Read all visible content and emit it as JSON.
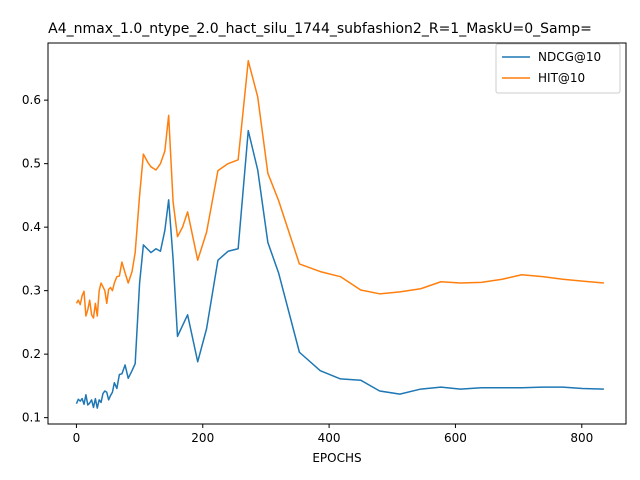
{
  "chart_data": {
    "type": "line",
    "title": "A4_nmax_1.0_ntype_2.0_hact_silu_1744_subfashion2_R=1_MaskU=0_Samp=",
    "xlabel": "EPOCHS",
    "ylabel": "",
    "xlim": [
      -45,
      870
    ],
    "ylim": [
      0.09,
      0.69
    ],
    "xticks": [
      0,
      200,
      400,
      600,
      800
    ],
    "yticks": [
      0.1,
      0.2,
      0.3,
      0.4,
      0.5,
      0.6
    ],
    "legend_position": "top-right",
    "grid": false,
    "series": [
      {
        "name": "NDCG@10",
        "color": "#1f77b4",
        "x": [
          0,
          3,
          6,
          9,
          12,
          15,
          18,
          21,
          24,
          27,
          30,
          33,
          36,
          39,
          42,
          45,
          48,
          51,
          54,
          57,
          60,
          64,
          68,
          72,
          77,
          82,
          88,
          93,
          100,
          106,
          113,
          118,
          126,
          133,
          140,
          146,
          153,
          160,
          168,
          176,
          192,
          206,
          224,
          240,
          256,
          272,
          287,
          303,
          320,
          353,
          386,
          418,
          450,
          480,
          512,
          545,
          577,
          608,
          641,
          674,
          705,
          738,
          770,
          801,
          835
        ],
        "values": [
          0.122,
          0.129,
          0.126,
          0.13,
          0.121,
          0.136,
          0.12,
          0.123,
          0.128,
          0.116,
          0.13,
          0.115,
          0.128,
          0.124,
          0.138,
          0.142,
          0.14,
          0.128,
          0.135,
          0.14,
          0.155,
          0.146,
          0.168,
          0.169,
          0.183,
          0.162,
          0.174,
          0.185,
          0.312,
          0.372,
          0.365,
          0.36,
          0.366,
          0.362,
          0.395,
          0.443,
          0.35,
          0.228,
          0.245,
          0.262,
          0.188,
          0.24,
          0.348,
          0.362,
          0.366,
          0.552,
          0.49,
          0.376,
          0.328,
          0.203,
          0.174,
          0.161,
          0.159,
          0.142,
          0.137,
          0.145,
          0.148,
          0.145,
          0.147,
          0.147,
          0.147,
          0.148,
          0.148,
          0.146,
          0.145
        ]
      },
      {
        "name": "HIT@10",
        "color": "#ff7f0e",
        "x": [
          0,
          3,
          6,
          9,
          12,
          15,
          18,
          21,
          24,
          27,
          30,
          33,
          36,
          39,
          42,
          45,
          48,
          51,
          54,
          57,
          60,
          64,
          68,
          72,
          77,
          82,
          88,
          93,
          100,
          106,
          113,
          118,
          126,
          133,
          140,
          146,
          153,
          160,
          168,
          176,
          192,
          206,
          224,
          240,
          256,
          272,
          287,
          303,
          320,
          353,
          386,
          418,
          450,
          480,
          512,
          545,
          577,
          608,
          641,
          674,
          705,
          738,
          770,
          801,
          835
        ],
        "values": [
          0.28,
          0.285,
          0.278,
          0.292,
          0.299,
          0.26,
          0.27,
          0.285,
          0.262,
          0.257,
          0.28,
          0.26,
          0.3,
          0.312,
          0.306,
          0.3,
          0.28,
          0.302,
          0.305,
          0.3,
          0.312,
          0.322,
          0.323,
          0.345,
          0.328,
          0.312,
          0.33,
          0.36,
          0.45,
          0.515,
          0.502,
          0.495,
          0.49,
          0.5,
          0.52,
          0.576,
          0.44,
          0.385,
          0.4,
          0.424,
          0.348,
          0.392,
          0.489,
          0.5,
          0.506,
          0.662,
          0.605,
          0.485,
          0.442,
          0.342,
          0.33,
          0.322,
          0.301,
          0.295,
          0.298,
          0.303,
          0.314,
          0.312,
          0.313,
          0.318,
          0.325,
          0.322,
          0.318,
          0.315,
          0.312
        ]
      }
    ]
  }
}
